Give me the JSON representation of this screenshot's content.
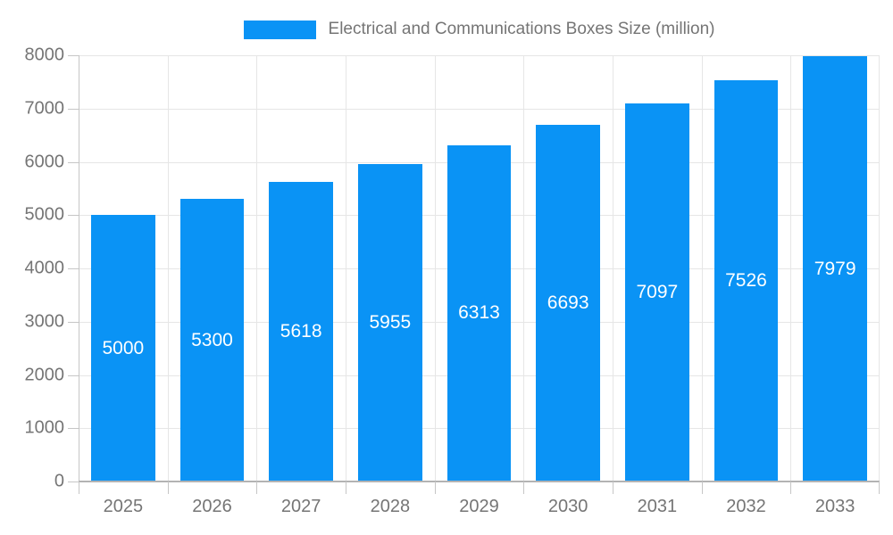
{
  "legend": {
    "label": "Electrical and Communications Boxes Size (million)"
  },
  "colors": {
    "bar": "#0a93f5",
    "bar_label": "#ffffff",
    "tick_label": "#757575",
    "gridline": "#e6e6e6",
    "axis": "#b3b3b3"
  },
  "chart_data": {
    "type": "bar",
    "title": "Electrical and Communications Boxes Size (million)",
    "categories": [
      "2025",
      "2026",
      "2027",
      "2028",
      "2029",
      "2030",
      "2031",
      "2032",
      "2033"
    ],
    "values": [
      5000,
      5300,
      5618,
      5955,
      6313,
      6693,
      7097,
      7526,
      7979
    ],
    "xlabel": "",
    "ylabel": "",
    "ylim": [
      0,
      8000
    ],
    "ytick_step": 1000,
    "grid": true,
    "legend_position": "top",
    "bar_label_position": "inside-center",
    "bar_width_fraction": 0.72
  }
}
